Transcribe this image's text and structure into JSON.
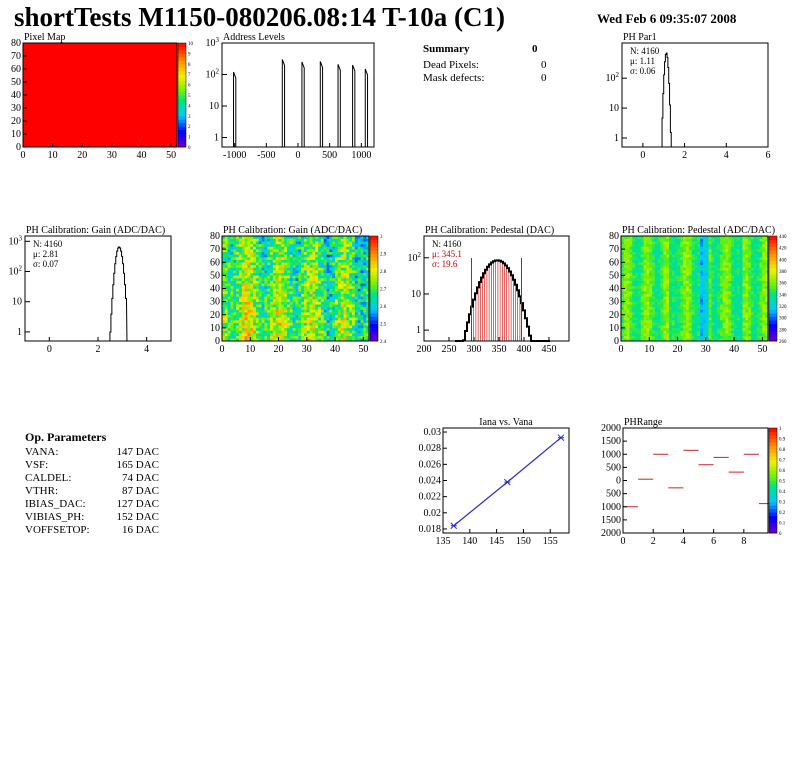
{
  "header": {
    "title": "shortTests M1150-080206.08:14 T-10a (C1)",
    "date": "Wed Feb  6 09:35:07 2008"
  },
  "summary": {
    "title": "Summary",
    "title_value": "0",
    "dead_label": "Dead Pixels:",
    "dead_value": "0",
    "mask_label": "Mask defects:",
    "mask_value": "0"
  },
  "op_params": {
    "title": "Op. Parameters",
    "rows": [
      {
        "name": "VANA:",
        "value": "147 DAC"
      },
      {
        "name": "VSF:",
        "value": "165 DAC"
      },
      {
        "name": "CALDEL:",
        "value": "74 DAC"
      },
      {
        "name": "VTHR:",
        "value": "87 DAC"
      },
      {
        "name": "IBIAS_DAC:",
        "value": "127 DAC"
      },
      {
        "name": "VIBIAS_PH:",
        "value": "152 DAC"
      },
      {
        "name": "VOFFSETOP:",
        "value": "16 DAC"
      }
    ]
  },
  "colors": {
    "red": "#ff0000",
    "blue": "#2b2bc8",
    "pedestal_red": "#cc0000"
  },
  "chart_data": [
    {
      "id": "pixel_map",
      "type": "heatmap",
      "title": "Pixel Map",
      "x_ticks": [
        "0",
        "10",
        "20",
        "30",
        "40",
        "50"
      ],
      "y_ticks": [
        "0",
        "10",
        "20",
        "30",
        "40",
        "50",
        "60",
        "70",
        "80"
      ],
      "xlim": [
        0,
        52
      ],
      "ylim": [
        0,
        80
      ],
      "palette_ticks": [
        "0",
        "1",
        "2",
        "3",
        "4",
        "5",
        "6",
        "7",
        "8",
        "9",
        "10"
      ],
      "fill_value": 10
    },
    {
      "id": "address_levels",
      "type": "bar",
      "title": "Address Levels",
      "x_ticks": [
        "-1000",
        "-500",
        "0",
        "500",
        "1000"
      ],
      "y_ticks": [
        "1",
        "10",
        "10^2",
        "10^3"
      ],
      "xlim": [
        -1200,
        1200
      ],
      "log_y": true,
      "ylim": [
        0.5,
        1000
      ],
      "peaks": [
        {
          "x": -1000,
          "y": 120
        },
        {
          "x": -230,
          "y": 300
        },
        {
          "x": 80,
          "y": 250
        },
        {
          "x": 370,
          "y": 260
        },
        {
          "x": 650,
          "y": 210
        },
        {
          "x": 880,
          "y": 200
        },
        {
          "x": 1080,
          "y": 150
        }
      ]
    },
    {
      "id": "ph_par1",
      "type": "bar",
      "title": "PH Par1",
      "x_ticks": [
        "0",
        "2",
        "4",
        "6"
      ],
      "y_ticks": [
        "1",
        "10",
        "10^2"
      ],
      "xlim": [
        -1,
        6
      ],
      "log_y": true,
      "ylim": [
        0.5,
        1500
      ],
      "stats": [
        "N: 4160",
        "μ: 1.11",
        "σ: 0.06"
      ]
    },
    {
      "id": "gain_hist",
      "type": "bar",
      "title": "PH Calibration: Gain (ADC/DAC)",
      "x_ticks": [
        "0",
        "2",
        "4"
      ],
      "y_ticks": [
        "1",
        "10",
        "10^2",
        "10^3"
      ],
      "xlim": [
        -1,
        5
      ],
      "log_y": true,
      "ylim": [
        0.5,
        1500
      ],
      "stats": [
        "N: 4160",
        "μ: 2.81",
        "σ: 0.07"
      ]
    },
    {
      "id": "gain_map",
      "type": "heatmap",
      "title": "PH Calibration: Gain (ADC/DAC)",
      "x_ticks": [
        "0",
        "10",
        "20",
        "30",
        "40",
        "50"
      ],
      "y_ticks": [
        "0",
        "10",
        "20",
        "30",
        "40",
        "50",
        "60",
        "70",
        "80"
      ],
      "xlim": [
        0,
        52
      ],
      "ylim": [
        0,
        80
      ],
      "palette_ticks": [
        "2.4",
        "2.5",
        "2.6",
        "2.7",
        "2.8",
        "2.9",
        "3"
      ],
      "zlim": [
        2.35,
        3.05
      ]
    },
    {
      "id": "pedestal_hist",
      "type": "bar",
      "title": "PH Calibration: Pedestal (DAC)",
      "x_ticks": [
        "200",
        "250",
        "300",
        "350",
        "400",
        "450"
      ],
      "y_ticks": [
        "1",
        "10",
        "10^2"
      ],
      "xlim": [
        200,
        490
      ],
      "log_y": true,
      "ylim": [
        0.5,
        400
      ],
      "stats": [
        "N: 4160",
        "μ: 345.1",
        "σ: 19.6"
      ],
      "cut_lines": [
        295,
        395
      ]
    },
    {
      "id": "pedestal_map",
      "type": "heatmap",
      "title": "PH Calibration: Pedestal (ADC/DAC)",
      "x_ticks": [
        "0",
        "10",
        "20",
        "30",
        "40",
        "50"
      ],
      "y_ticks": [
        "0",
        "10",
        "20",
        "30",
        "40",
        "50",
        "60",
        "70",
        "80"
      ],
      "xlim": [
        0,
        52
      ],
      "ylim": [
        0,
        80
      ],
      "palette_ticks": [
        "260",
        "280",
        "300",
        "320",
        "340",
        "360",
        "380",
        "400",
        "420",
        "440"
      ],
      "zlim": [
        250,
        450
      ]
    },
    {
      "id": "iana_vana",
      "type": "line",
      "title": "Iana vs. Vana",
      "x_ticks": [
        "135",
        "140",
        "145",
        "150",
        "155"
      ],
      "y_ticks": [
        "0.018",
        "0.02",
        "0.022",
        "0.024",
        "0.026",
        "0.028",
        "0.03"
      ],
      "xlim": [
        135,
        158.5
      ],
      "ylim": [
        0.0175,
        0.0305
      ],
      "x": [
        137,
        147,
        157
      ],
      "y": [
        0.0184,
        0.0238,
        0.0293
      ]
    },
    {
      "id": "ph_range",
      "type": "scatter",
      "title": "PHRange",
      "x_ticks": [
        "0",
        "2",
        "4",
        "6",
        "8"
      ],
      "y_ticks": [
        "2000",
        "1500",
        "1000",
        "500",
        "0",
        "500",
        "1000",
        "1500",
        "2000"
      ],
      "xlim": [
        0,
        9.6
      ],
      "ylim": [
        -2000,
        2000
      ],
      "palette_ticks": [
        "0",
        "0.1",
        "0.2",
        "0.3",
        "0.4",
        "0.5",
        "0.6",
        "0.7",
        "0.8",
        "0.9",
        "1"
      ],
      "segments": [
        {
          "x": 0,
          "y": -1000
        },
        {
          "x": 1,
          "y": 50
        },
        {
          "x": 2,
          "y": 1000
        },
        {
          "x": 3,
          "y": -280
        },
        {
          "x": 4,
          "y": 1150
        },
        {
          "x": 5,
          "y": 600
        },
        {
          "x": 6,
          "y": 880
        },
        {
          "x": 7,
          "y": 320
        },
        {
          "x": 8,
          "y": 1000
        },
        {
          "x": 9,
          "y": -880
        }
      ]
    }
  ]
}
